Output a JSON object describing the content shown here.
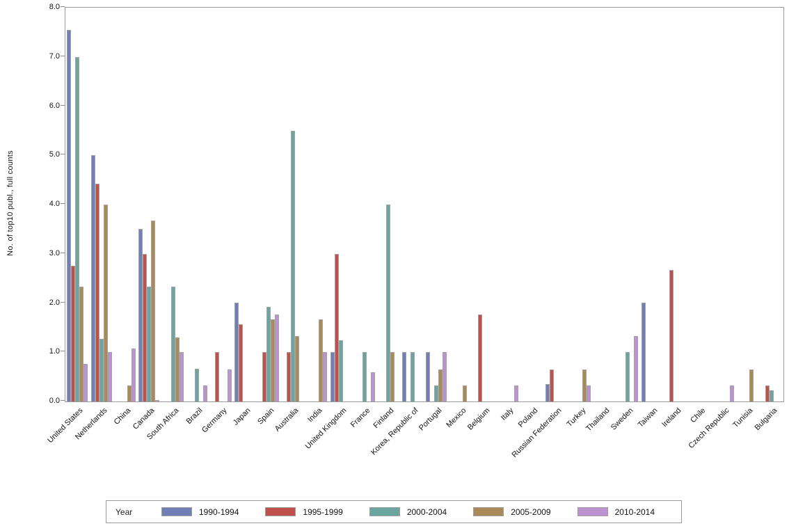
{
  "chart_data": {
    "type": "bar",
    "title": "",
    "xlabel": "",
    "ylabel": "No. of top10 publ., full counts",
    "ylim": [
      0,
      8
    ],
    "ytick_labels": [
      "0.0",
      "1.0",
      "2.0",
      "3.0",
      "4.0",
      "5.0",
      "6.0",
      "7.0",
      "8.0"
    ],
    "grid": false,
    "legend": {
      "title": "Year",
      "position": "bottom"
    },
    "categories": [
      "United States",
      "Netherlands",
      "China",
      "Canada",
      "South Africa",
      "Brazil",
      "Germany",
      "Japan",
      "Spain",
      "Australia",
      "India",
      "United Kingdom",
      "France",
      "Finland",
      "Korea, Republic of",
      "Portugal",
      "Mexico",
      "Belgium",
      "Italy",
      "Poland",
      "Russian Federation",
      "Turkey",
      "Thailand",
      "Sweden",
      "Taiwan",
      "Ireland",
      "Chile",
      "Czech Republic",
      "Tunisia",
      "Bulgaria"
    ],
    "series": [
      {
        "name": "1990-1994",
        "color": "#7080B6",
        "values": [
          7.55,
          5.0,
          0,
          3.5,
          0,
          0,
          0,
          2.0,
          0,
          0,
          0,
          1.0,
          0,
          0,
          1.0,
          1.0,
          0,
          0,
          0,
          0,
          0.35,
          0,
          0,
          0,
          2.0,
          0,
          0,
          0,
          0,
          0
        ]
      },
      {
        "name": "1995-1999",
        "color": "#C0504C",
        "values": [
          2.75,
          4.43,
          0,
          3.0,
          0,
          0,
          1.0,
          1.57,
          1.0,
          1.0,
          0,
          3.0,
          0,
          0,
          0,
          0,
          0,
          1.77,
          0,
          0,
          0.65,
          0,
          0,
          0,
          0,
          2.67,
          0,
          0,
          0,
          0.33
        ]
      },
      {
        "name": "2000-2004",
        "color": "#6AA59F",
        "values": [
          7.0,
          1.27,
          0,
          2.33,
          2.33,
          0.67,
          0,
          0,
          1.92,
          5.5,
          0,
          1.25,
          1.0,
          4.0,
          1.0,
          0.33,
          0,
          0,
          0,
          0,
          0,
          0,
          0,
          1.0,
          0,
          0,
          0,
          0,
          0,
          0.22
        ]
      },
      {
        "name": "2005-2009",
        "color": "#AA8A58",
        "values": [
          2.33,
          4.0,
          0.33,
          3.67,
          1.3,
          0,
          0,
          0,
          1.67,
          1.33,
          1.67,
          0,
          0,
          1.0,
          0,
          0.65,
          0.33,
          0,
          0,
          0,
          0,
          0.65,
          0,
          0,
          0,
          0,
          0,
          0,
          0.65,
          0
        ]
      },
      {
        "name": "2010-2014",
        "color": "#BC92D0",
        "values": [
          0.77,
          1.0,
          1.08,
          0.03,
          1.0,
          0.33,
          0.65,
          0,
          1.77,
          0,
          1.0,
          0,
          0.6,
          0,
          0,
          1.0,
          0,
          0,
          0.33,
          0,
          0,
          0.33,
          0,
          1.33,
          0,
          0,
          0,
          0.33,
          0,
          0
        ]
      }
    ]
  },
  "styles": {
    "background": "#FFFFFF",
    "axis_color": "#9A9A9A",
    "bar_border_color": "#A3A3A3",
    "text_color": "#111111"
  }
}
